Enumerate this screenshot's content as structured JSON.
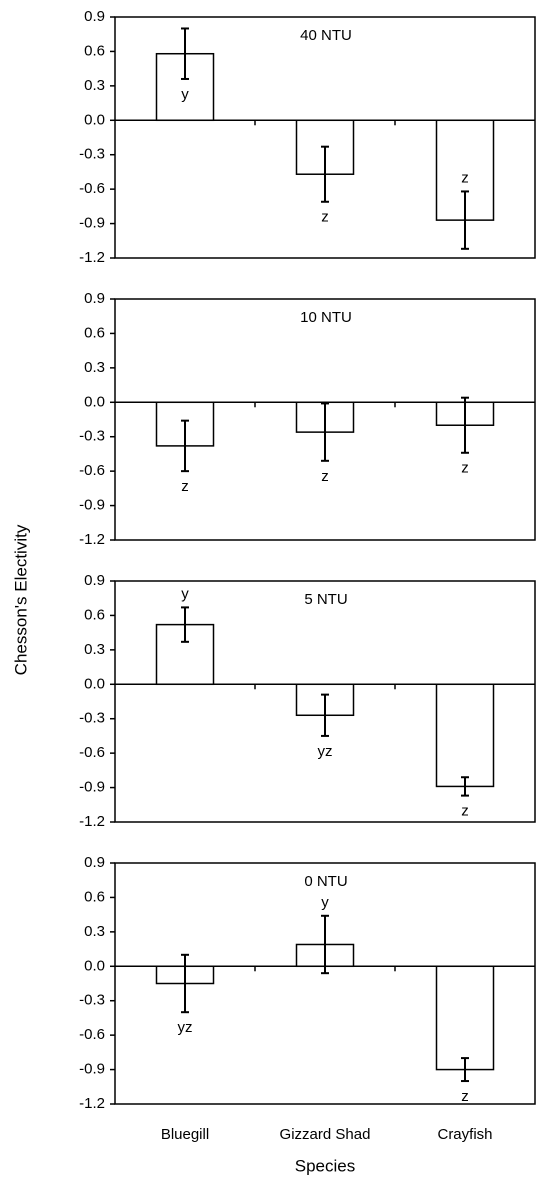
{
  "categories": [
    "Bluegill",
    "Gizzard Shad",
    "Crayfish"
  ],
  "xlabel": "Species",
  "ylabel": "Chesson's Electivity",
  "chart_data": [
    {
      "type": "bar",
      "title": "40 NTU",
      "color": "#ffffff",
      "values": [
        0.58,
        -0.47,
        -0.87
      ],
      "errors": [
        0.22,
        0.24,
        0.25
      ],
      "annotations": [
        "y",
        "z",
        "z"
      ],
      "ylim": [
        -1.2,
        0.9
      ],
      "yticks": [
        0.9,
        0.6,
        0.3,
        {
          "value": 0,
          "label": "0.0"
        },
        -0.3,
        -0.6,
        -0.9,
        -1.2
      ]
    },
    {
      "type": "bar",
      "title": "10 NTU",
      "color": "#ffffff",
      "values": [
        -0.38,
        -0.26,
        -0.2
      ],
      "errors": [
        0.22,
        0.25,
        0.24
      ],
      "annotations": [
        "z",
        "z",
        "z"
      ],
      "ylim": [
        -1.2,
        0.9
      ],
      "yticks": [
        0.9,
        0.6,
        0.3,
        {
          "value": 0,
          "label": "0.0"
        },
        -0.3,
        -0.6,
        -0.9,
        -1.2
      ]
    },
    {
      "type": "bar",
      "title": "5 NTU",
      "color": "#ffffff",
      "values": [
        0.52,
        -0.27,
        -0.89
      ],
      "errors": [
        0.15,
        0.18,
        0.08
      ],
      "annotations": [
        "y",
        "yz",
        "z"
      ],
      "ylim": [
        -1.2,
        0.9
      ],
      "yticks": [
        0.9,
        0.6,
        0.3,
        {
          "value": 0,
          "label": "0.0"
        },
        -0.3,
        -0.6,
        -0.9,
        -1.2
      ]
    },
    {
      "type": "bar",
      "title": "0 NTU",
      "color": "#ffffff",
      "values": [
        -0.15,
        0.19,
        -0.9
      ],
      "errors": [
        0.25,
        0.25,
        0.1
      ],
      "annotations": [
        "yz",
        "y",
        "z"
      ],
      "ylim": [
        -1.2,
        0.9
      ],
      "yticks": [
        0.9,
        0.6,
        0.3,
        {
          "value": 0,
          "label": "0.0"
        },
        -0.3,
        -0.6,
        -0.9,
        -1.2
      ]
    }
  ]
}
